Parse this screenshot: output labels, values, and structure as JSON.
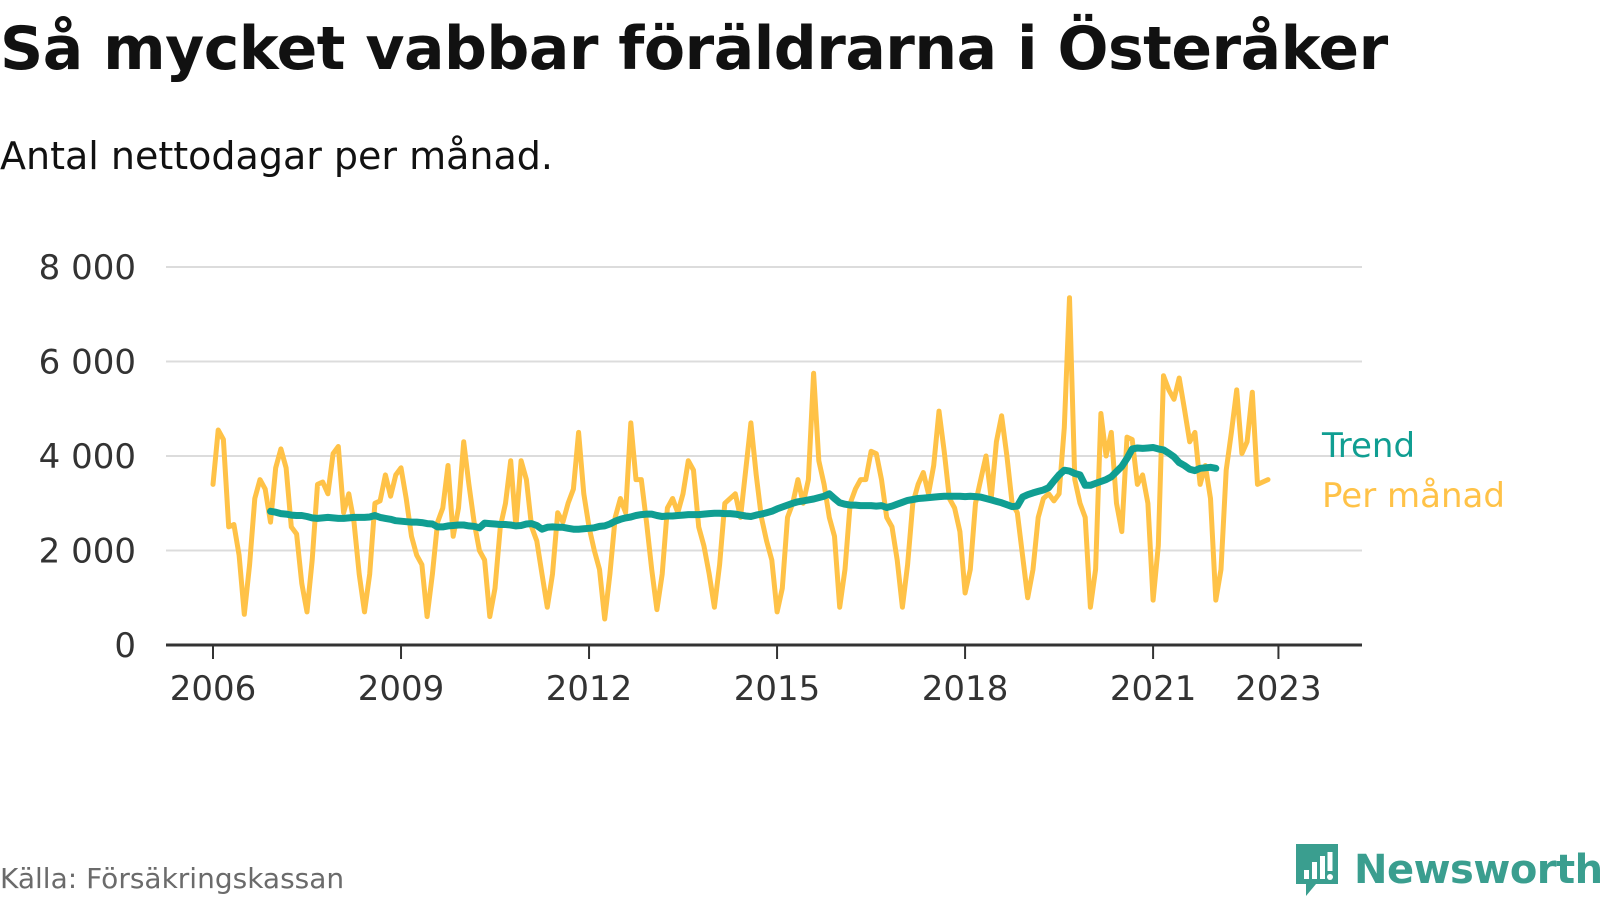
{
  "header": {
    "title": "Så mycket vabbar föräldrarna i Österåker",
    "subtitle": "Antal nettodagar per månad."
  },
  "footer": {
    "source": "Källa: Försäkringskassan",
    "brand": "Newsworthy"
  },
  "colors": {
    "trend": "#109e92",
    "per_month": "#ffc247",
    "grid": "#dcdcdc",
    "axis": "#333333",
    "brand": "#3a9e8f"
  },
  "icons": {
    "brand_logo": "newsworthy-logo-icon"
  },
  "chart_data": {
    "type": "line",
    "title": "Så mycket vabbar föräldrarna i Österåker",
    "subtitle": "Antal nettodagar per månad.",
    "xlabel": "",
    "ylabel": "",
    "ylim": [
      0,
      8000
    ],
    "yticks": [
      0,
      2000,
      4000,
      6000,
      8000
    ],
    "ytick_labels": [
      "0",
      "2 000",
      "4 000",
      "6 000",
      "8 000"
    ],
    "xlim": [
      "2005-04",
      "2024-05"
    ],
    "xticks": [
      "2006-01",
      "2009-01",
      "2012-01",
      "2015-01",
      "2018-01",
      "2021-01",
      "2023-01"
    ],
    "xtick_labels": [
      "2006",
      "2009",
      "2012",
      "2015",
      "2018",
      "2021",
      "2023"
    ],
    "grid": true,
    "legend": "direct labels at right end of series",
    "series": [
      {
        "name": "Trend",
        "color": "#109e92",
        "start": "2006-12",
        "values": [
          2830,
          2810,
          2780,
          2770,
          2750,
          2740,
          2740,
          2720,
          2690,
          2680,
          2690,
          2700,
          2690,
          2680,
          2680,
          2690,
          2700,
          2700,
          2700,
          2710,
          2740,
          2700,
          2680,
          2660,
          2630,
          2620,
          2610,
          2600,
          2600,
          2590,
          2570,
          2560,
          2500,
          2500,
          2520,
          2530,
          2540,
          2540,
          2520,
          2510,
          2480,
          2580,
          2570,
          2560,
          2550,
          2550,
          2540,
          2520,
          2530,
          2560,
          2570,
          2530,
          2450,
          2490,
          2500,
          2490,
          2490,
          2470,
          2450,
          2450,
          2460,
          2470,
          2480,
          2510,
          2520,
          2560,
          2620,
          2660,
          2690,
          2710,
          2740,
          2760,
          2770,
          2770,
          2740,
          2720,
          2730,
          2730,
          2740,
          2750,
          2760,
          2760,
          2760,
          2770,
          2780,
          2790,
          2790,
          2780,
          2780,
          2770,
          2750,
          2730,
          2720,
          2750,
          2770,
          2800,
          2830,
          2880,
          2920,
          2960,
          3000,
          3030,
          3050,
          3070,
          3090,
          3120,
          3150,
          3200,
          3100,
          3010,
          2980,
          2960,
          2960,
          2950,
          2950,
          2950,
          2940,
          2950,
          2910,
          2940,
          2980,
          3020,
          3060,
          3080,
          3100,
          3110,
          3120,
          3130,
          3140,
          3150,
          3150,
          3150,
          3150,
          3140,
          3150,
          3140,
          3130,
          3100,
          3070,
          3040,
          3010,
          2970,
          2930,
          2940,
          3130,
          3180,
          3220,
          3250,
          3280,
          3330,
          3470,
          3600,
          3700,
          3680,
          3630,
          3600,
          3380,
          3380,
          3420,
          3460,
          3500,
          3560,
          3670,
          3780,
          3950,
          4150,
          4170,
          4160,
          4170,
          4180,
          4150,
          4130,
          4060,
          3980,
          3860,
          3800,
          3720,
          3690,
          3740,
          3750,
          3760,
          3740
        ]
      },
      {
        "name": "Per månad",
        "color": "#ffc247",
        "start": "2006-01",
        "values": [
          3400,
          4550,
          4350,
          2500,
          2550,
          1900,
          650,
          1700,
          3100,
          3500,
          3300,
          2600,
          3750,
          4150,
          3750,
          2500,
          2350,
          1300,
          700,
          1800,
          3400,
          3450,
          3200,
          4050,
          4200,
          2800,
          3200,
          2600,
          1500,
          700,
          1500,
          3000,
          3050,
          3600,
          3150,
          3600,
          3750,
          3100,
          2300,
          1900,
          1700,
          600,
          1500,
          2600,
          2900,
          3800,
          2300,
          2900,
          4300,
          3400,
          2600,
          2000,
          1800,
          600,
          1200,
          2500,
          3000,
          3900,
          2500,
          3900,
          3500,
          2500,
          2200,
          1500,
          800,
          1500,
          2800,
          2600,
          3000,
          3300,
          4500,
          3200,
          2500,
          2000,
          1600,
          550,
          1500,
          2700,
          3100,
          2800,
          4700,
          3500,
          3500,
          2600,
          1600,
          750,
          1500,
          2900,
          3100,
          2800,
          3200,
          3900,
          3700,
          2500,
          2100,
          1500,
          800,
          1700,
          3000,
          3100,
          3200,
          2700,
          3700,
          4700,
          3600,
          2700,
          2200,
          1800,
          700,
          1200,
          2700,
          3000,
          3500,
          3000,
          3500,
          5750,
          3900,
          3400,
          2700,
          2300,
          800,
          1600,
          3000,
          3300,
          3500,
          3500,
          4100,
          4050,
          3500,
          2700,
          2500,
          1800,
          800,
          1700,
          3000,
          3400,
          3650,
          3200,
          3800,
          4950,
          4100,
          3100,
          2900,
          2400,
          1100,
          1600,
          3000,
          3500,
          4000,
          3100,
          4300,
          4850,
          4000,
          3000,
          2800,
          1900,
          1000,
          1600,
          2700,
          3100,
          3200,
          3050,
          3200,
          4600,
          7350,
          3500,
          3000,
          2700,
          800,
          1600,
          4900,
          4000,
          4500,
          3000,
          2400,
          4400,
          4350,
          3400,
          3600,
          3000,
          950,
          2100,
          5700,
          5400,
          5200,
          5650,
          5000,
          4300,
          4500,
          3400,
          3800,
          3100,
          950,
          1600,
          3700,
          4500,
          5400,
          4050,
          4300,
          5350,
          3400,
          3450,
          3500
        ]
      }
    ]
  }
}
